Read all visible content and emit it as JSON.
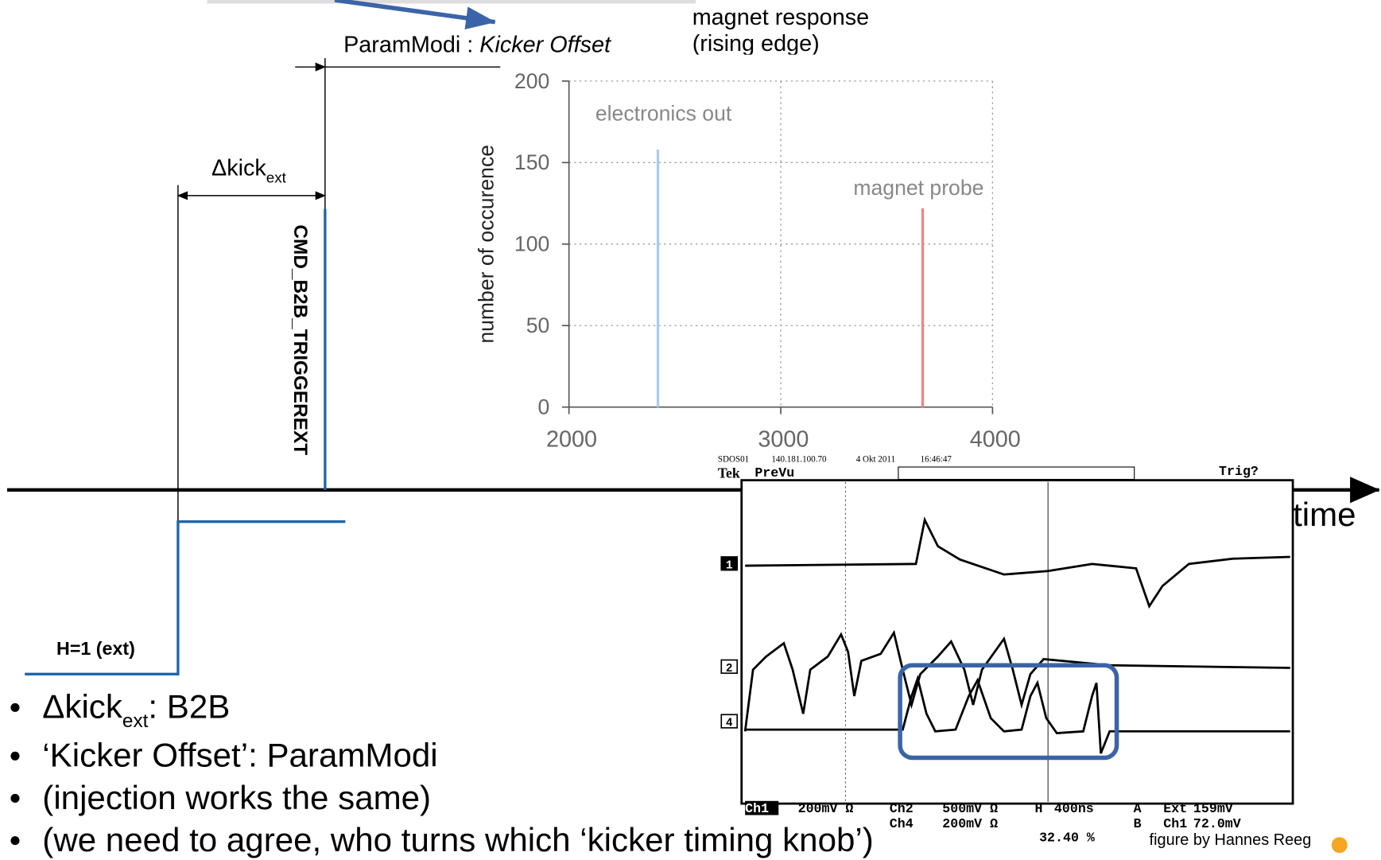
{
  "slide": {
    "magnet_response": [
      "magnet response",
      "(rising edge)"
    ],
    "param_modi": "ParamModi : ",
    "kicker_offset": "Kicker Offset",
    "delta_kick": "Δkick",
    "delta_kick_sub": "ext",
    "trigger": "CMD_B2B_TRIGGEREXT",
    "harmonic": "H=1 (ext)",
    "time": "time",
    "credit": "figure by Hannes Reeg",
    "bullets": [
      [
        "Δkick",
        "ext",
        ": B2B"
      ],
      [
        "‘Kicker Offset’: ParamModi"
      ],
      [
        "(injection works the same)"
      ],
      [
        "(we need to agree, who turns which ‘kicker timing knob’)"
      ]
    ]
  },
  "chart_data": {
    "type": "bar",
    "y_label": "number of occurence",
    "xlim": [
      2000,
      4000
    ],
    "xticks": [
      2000,
      3000,
      4000
    ],
    "ylim": [
      0,
      200
    ],
    "yticks": [
      0,
      50,
      100,
      150,
      200
    ],
    "grid": true,
    "series": [
      {
        "name": "electronics out",
        "color": "#a9cde9",
        "x": [
          2420
        ],
        "values": [
          158
        ]
      },
      {
        "name": "magnet probe",
        "color": "#f08585",
        "x": [
          3670
        ],
        "values": [
          122
        ]
      }
    ]
  },
  "scope": {
    "header": [
      "SDOS01",
      "140.181.100.70",
      "4 Okt 2011",
      "16:46:47"
    ],
    "brand": "Tek",
    "mode": "PreVu",
    "trig": "Trig?",
    "channels": [
      "1",
      "2",
      "4"
    ],
    "settings": [
      [
        "Ch1",
        "200mV Ω"
      ],
      [
        "Ch2",
        "500mV Ω"
      ],
      [
        "Ch4",
        "200mV Ω"
      ],
      [
        "H",
        "400ns"
      ],
      [
        "A",
        "Ext",
        "159mV"
      ],
      [
        "B",
        "Ch1",
        "72.0mV"
      ],
      [
        "32.40 %"
      ]
    ]
  }
}
